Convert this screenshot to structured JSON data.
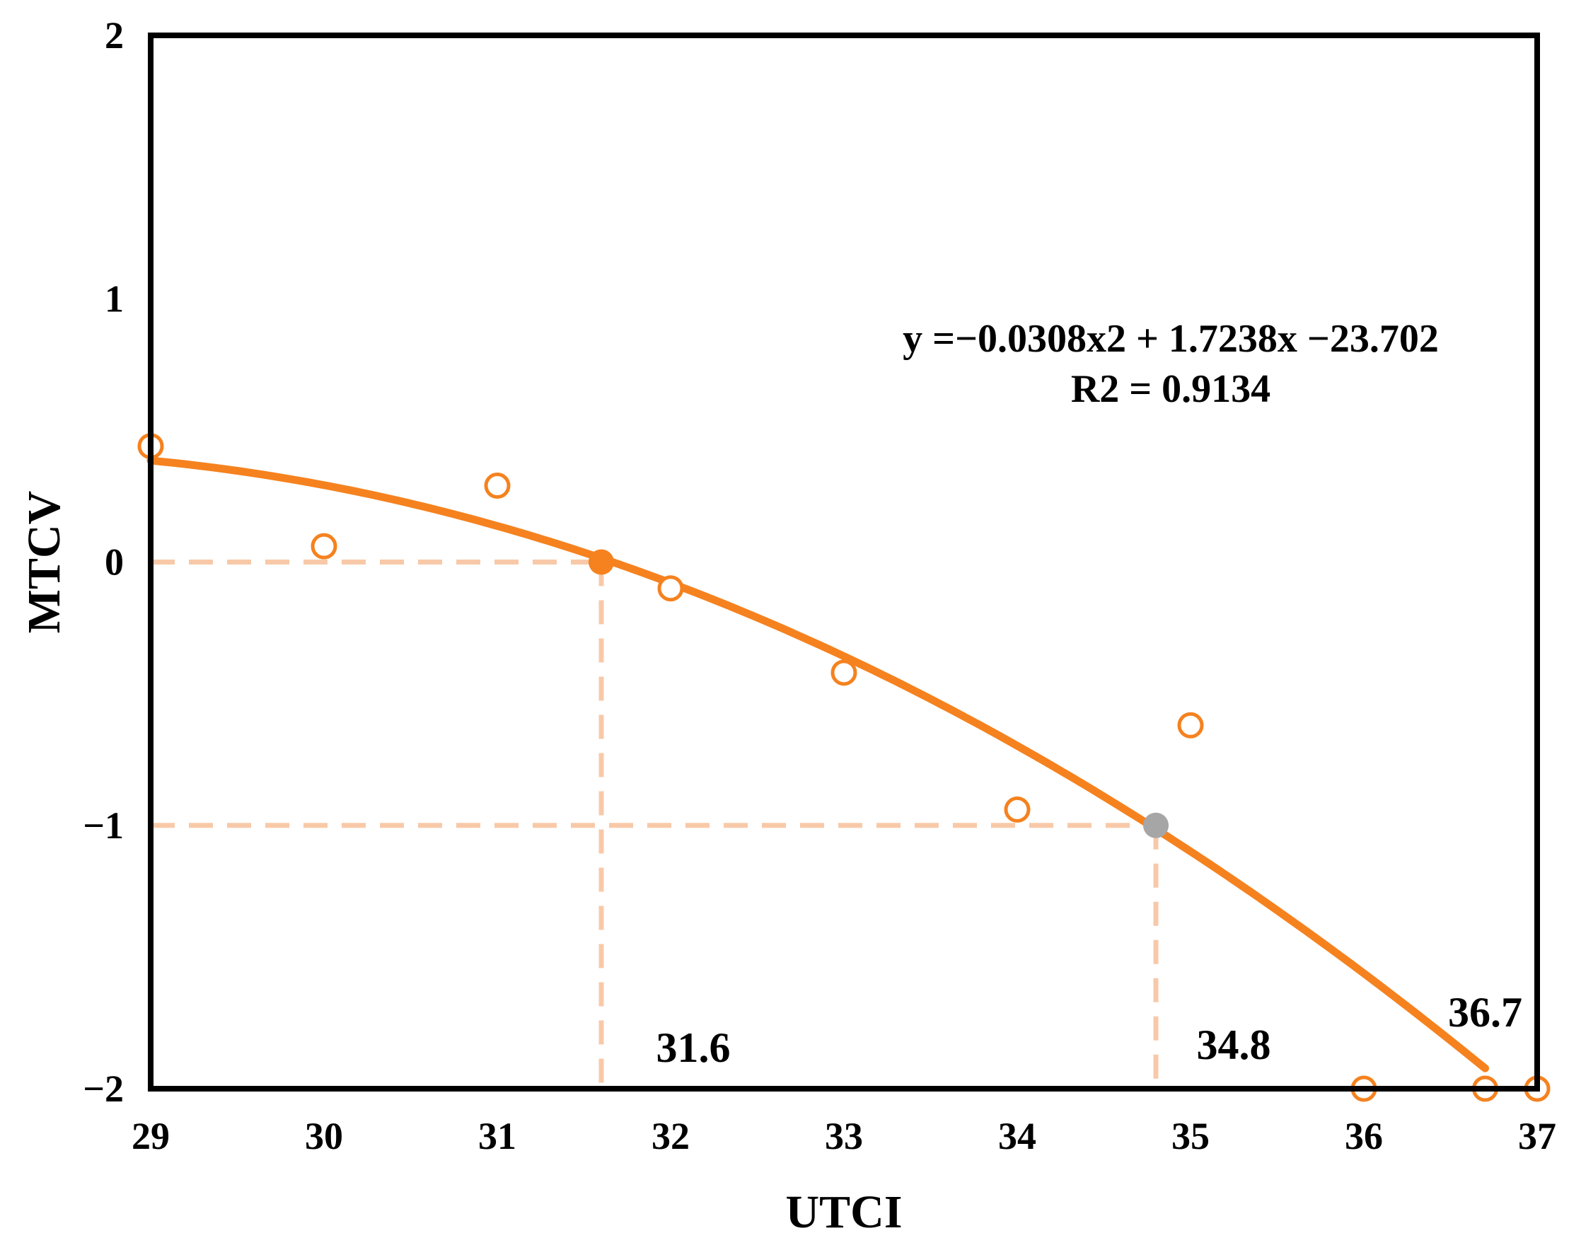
{
  "chart_data": {
    "type": "scatter",
    "xlabel": "UTCI",
    "ylabel": "MTCV",
    "xlim": [
      29,
      37
    ],
    "ylim": [
      -2,
      2
    ],
    "x_ticks": [
      {
        "value": 29,
        "label": "29"
      },
      {
        "value": 30,
        "label": "30"
      },
      {
        "value": 31,
        "label": "31"
      },
      {
        "value": 32,
        "label": "32"
      },
      {
        "value": 33,
        "label": "33"
      },
      {
        "value": 34,
        "label": "34"
      },
      {
        "value": 35,
        "label": "35"
      },
      {
        "value": 36,
        "label": "36"
      },
      {
        "value": 37,
        "label": "37"
      }
    ],
    "y_ticks": [
      {
        "value": 2,
        "label": "2"
      },
      {
        "value": 1,
        "label": "1"
      },
      {
        "value": 0,
        "label": "0"
      },
      {
        "value": -1,
        "label": "−1"
      },
      {
        "value": -2,
        "label": "−2"
      }
    ],
    "series": [
      {
        "marker": "open-circle",
        "color": "#F5821F",
        "points": [
          {
            "x": 29,
            "y": 0.44
          },
          {
            "x": 30,
            "y": 0.06
          },
          {
            "x": 31,
            "y": 0.29
          },
          {
            "x": 32,
            "y": -0.1
          },
          {
            "x": 33,
            "y": -0.42
          },
          {
            "x": 34,
            "y": -0.94
          },
          {
            "x": 35,
            "y": -0.62
          },
          {
            "x": 36,
            "y": -2.0
          },
          {
            "x": 36.7,
            "y": -2.0
          },
          {
            "x": 37,
            "y": -2.0
          }
        ]
      }
    ],
    "fit": {
      "type": "polynomial",
      "coefficients": {
        "a": -0.0308,
        "b": 1.7238,
        "c": -23.702
      },
      "x_range": [
        29,
        36.7
      ],
      "color": "#F5821F",
      "equation": "y =−0.0308x2 + 1.7238x −23.702",
      "r_squared": "R2 = 0.9134"
    },
    "highlight_points": [
      {
        "x": 31.6,
        "y": 0,
        "color": "#F5821F"
      },
      {
        "x": 34.8,
        "y": -1,
        "color": "#A6A6A6"
      }
    ],
    "reference_lines": {
      "color": "#F8C9A8",
      "horizontal": [
        {
          "y": 0,
          "x_from": 29,
          "x_to": 31.6
        },
        {
          "y": -1,
          "x_from": 29,
          "x_to": 34.8
        }
      ],
      "vertical": [
        {
          "x": 31.6,
          "y_from": 0,
          "y_to": -2
        },
        {
          "x": 34.8,
          "y_from": -1,
          "y_to": -2
        }
      ]
    },
    "annotations": [
      {
        "text": "31.6",
        "x": 31.6
      },
      {
        "text": "34.8",
        "x": 34.8
      },
      {
        "text": "36.7",
        "x": 36.7
      }
    ],
    "grid": false
  }
}
